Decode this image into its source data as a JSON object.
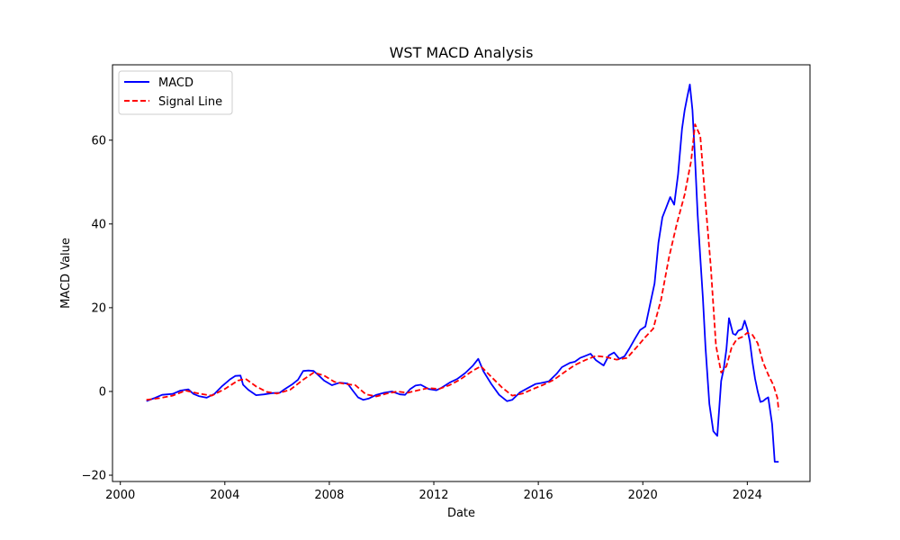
{
  "chart_data": {
    "type": "line",
    "title": "WST MACD Analysis",
    "xlabel": "Date",
    "ylabel": "MACD Value",
    "xlim": [
      1999.7,
      2026.4
    ],
    "ylim": [
      -21.5,
      78
    ],
    "x_ticks": [
      2000,
      2004,
      2008,
      2012,
      2016,
      2020,
      2024
    ],
    "y_ticks": [
      -20,
      0,
      20,
      40,
      60
    ],
    "grid": false,
    "legend_position": "top-left",
    "series": [
      {
        "name": "MACD",
        "color": "#0000ff",
        "style": "solid",
        "x": [
          2001.0,
          2001.3,
          2001.6,
          2002.0,
          2002.3,
          2002.6,
          2002.8,
          2003.0,
          2003.3,
          2003.6,
          2003.9,
          2004.2,
          2004.4,
          2004.6,
          2004.7,
          2004.9,
          2005.2,
          2005.5,
          2005.8,
          2006.1,
          2006.3,
          2006.6,
          2006.8,
          2007.0,
          2007.2,
          2007.4,
          2007.6,
          2007.8,
          2008.1,
          2008.4,
          2008.7,
          2008.9,
          2009.1,
          2009.3,
          2009.5,
          2009.8,
          2010.1,
          2010.4,
          2010.7,
          2010.9,
          2011.1,
          2011.3,
          2011.5,
          2011.8,
          2012.1,
          2012.3,
          2012.6,
          2012.9,
          2013.2,
          2013.5,
          2013.7,
          2013.9,
          2014.2,
          2014.5,
          2014.8,
          2015.0,
          2015.3,
          2015.6,
          2015.9,
          2016.1,
          2016.4,
          2016.7,
          2016.9,
          2017.2,
          2017.4,
          2017.6,
          2017.8,
          2018.0,
          2018.2,
          2018.5,
          2018.7,
          2018.9,
          2019.1,
          2019.3,
          2019.5,
          2019.7,
          2019.9,
          2020.1,
          2020.3,
          2020.45,
          2020.6,
          2020.75,
          2020.9,
          2021.05,
          2021.2,
          2021.35,
          2021.5,
          2021.6,
          2021.7,
          2021.8,
          2021.9,
          2022.0,
          2022.1,
          2022.2,
          2022.3,
          2022.4,
          2022.55,
          2022.7,
          2022.85,
          2023.0,
          2023.1,
          2023.2,
          2023.3,
          2023.45,
          2023.55,
          2023.65,
          2023.8,
          2023.9,
          2024.0,
          2024.1,
          2024.2,
          2024.3,
          2024.4,
          2024.5,
          2024.6,
          2024.7,
          2024.8,
          2024.95,
          2025.05,
          2025.2
        ],
        "values": [
          -2.3,
          -1.6,
          -0.8,
          -0.6,
          0.2,
          0.5,
          -0.6,
          -1.1,
          -1.5,
          -0.6,
          1.3,
          2.9,
          3.7,
          3.8,
          1.6,
          0.4,
          -0.9,
          -0.7,
          -0.4,
          -0.3,
          0.6,
          1.8,
          2.8,
          4.9,
          5.0,
          4.9,
          3.8,
          2.6,
          1.5,
          2.1,
          1.9,
          0.2,
          -1.4,
          -2.0,
          -1.7,
          -0.8,
          -0.3,
          0.0,
          -0.7,
          -0.8,
          0.6,
          1.4,
          1.6,
          0.6,
          0.3,
          0.9,
          2.1,
          3.0,
          4.4,
          6.2,
          7.8,
          4.8,
          1.8,
          -0.8,
          -2.3,
          -2.0,
          -0.2,
          0.8,
          1.8,
          2.0,
          2.4,
          4.2,
          5.8,
          6.8,
          7.1,
          8.0,
          8.5,
          9.0,
          7.5,
          6.2,
          8.6,
          9.3,
          7.8,
          8.4,
          10.4,
          12.6,
          14.7,
          15.5,
          21.4,
          25.8,
          35.5,
          41.6,
          44.0,
          46.4,
          44.6,
          51.8,
          62.7,
          67.1,
          70.3,
          73.3,
          67.2,
          55.4,
          42.1,
          32.0,
          22.3,
          10.5,
          -3.0,
          -9.5,
          -10.6,
          2.5,
          5.5,
          10.0,
          17.5,
          13.8,
          13.5,
          14.5,
          14.9,
          16.9,
          14.9,
          11.9,
          7.0,
          3.0,
          0.0,
          -2.5,
          -2.3,
          -1.8,
          -1.4,
          -7.8,
          -16.8,
          -16.8
        ]
      },
      {
        "name": "Signal Line",
        "color": "#ff0000",
        "style": "dashed",
        "x": [
          2001.0,
          2001.5,
          2002.0,
          2002.5,
          2003.0,
          2003.5,
          2004.0,
          2004.5,
          2004.8,
          2005.2,
          2005.6,
          2006.0,
          2006.5,
          2007.0,
          2007.4,
          2007.8,
          2008.2,
          2008.6,
          2009.0,
          2009.4,
          2009.8,
          2010.2,
          2010.6,
          2011.0,
          2011.4,
          2011.8,
          2012.2,
          2012.6,
          2013.0,
          2013.5,
          2013.8,
          2014.2,
          2014.6,
          2015.0,
          2015.4,
          2015.8,
          2016.2,
          2016.6,
          2017.0,
          2017.4,
          2017.8,
          2018.2,
          2018.6,
          2019.0,
          2019.4,
          2019.8,
          2020.1,
          2020.4,
          2020.7,
          2021.0,
          2021.3,
          2021.6,
          2021.85,
          2022.0,
          2022.2,
          2022.4,
          2022.6,
          2022.8,
          2023.0,
          2023.2,
          2023.4,
          2023.6,
          2023.8,
          2024.0,
          2024.2,
          2024.4,
          2024.6,
          2024.8,
          2025.0,
          2025.15,
          2025.2
        ],
        "values": [
          -2.0,
          -1.6,
          -1.0,
          0.2,
          -0.5,
          -1.0,
          0.6,
          2.6,
          3.0,
          1.2,
          -0.1,
          -0.5,
          0.4,
          2.8,
          4.5,
          3.8,
          2.3,
          1.8,
          1.5,
          -0.7,
          -1.2,
          -0.5,
          0.0,
          -0.3,
          0.3,
          0.8,
          0.6,
          1.5,
          2.8,
          5.0,
          6.0,
          3.5,
          1.0,
          -1.0,
          -0.5,
          0.6,
          1.6,
          2.8,
          4.6,
          6.3,
          7.5,
          8.5,
          8.2,
          7.6,
          8.0,
          10.8,
          13.0,
          15.0,
          22.0,
          32.0,
          40.0,
          47.0,
          55.0,
          63.8,
          61.0,
          45.0,
          30.0,
          11.0,
          4.5,
          6.0,
          10.5,
          12.5,
          13.0,
          14.0,
          13.5,
          11.5,
          7.0,
          4.0,
          1.5,
          -1.5,
          -4.5
        ]
      }
    ]
  }
}
